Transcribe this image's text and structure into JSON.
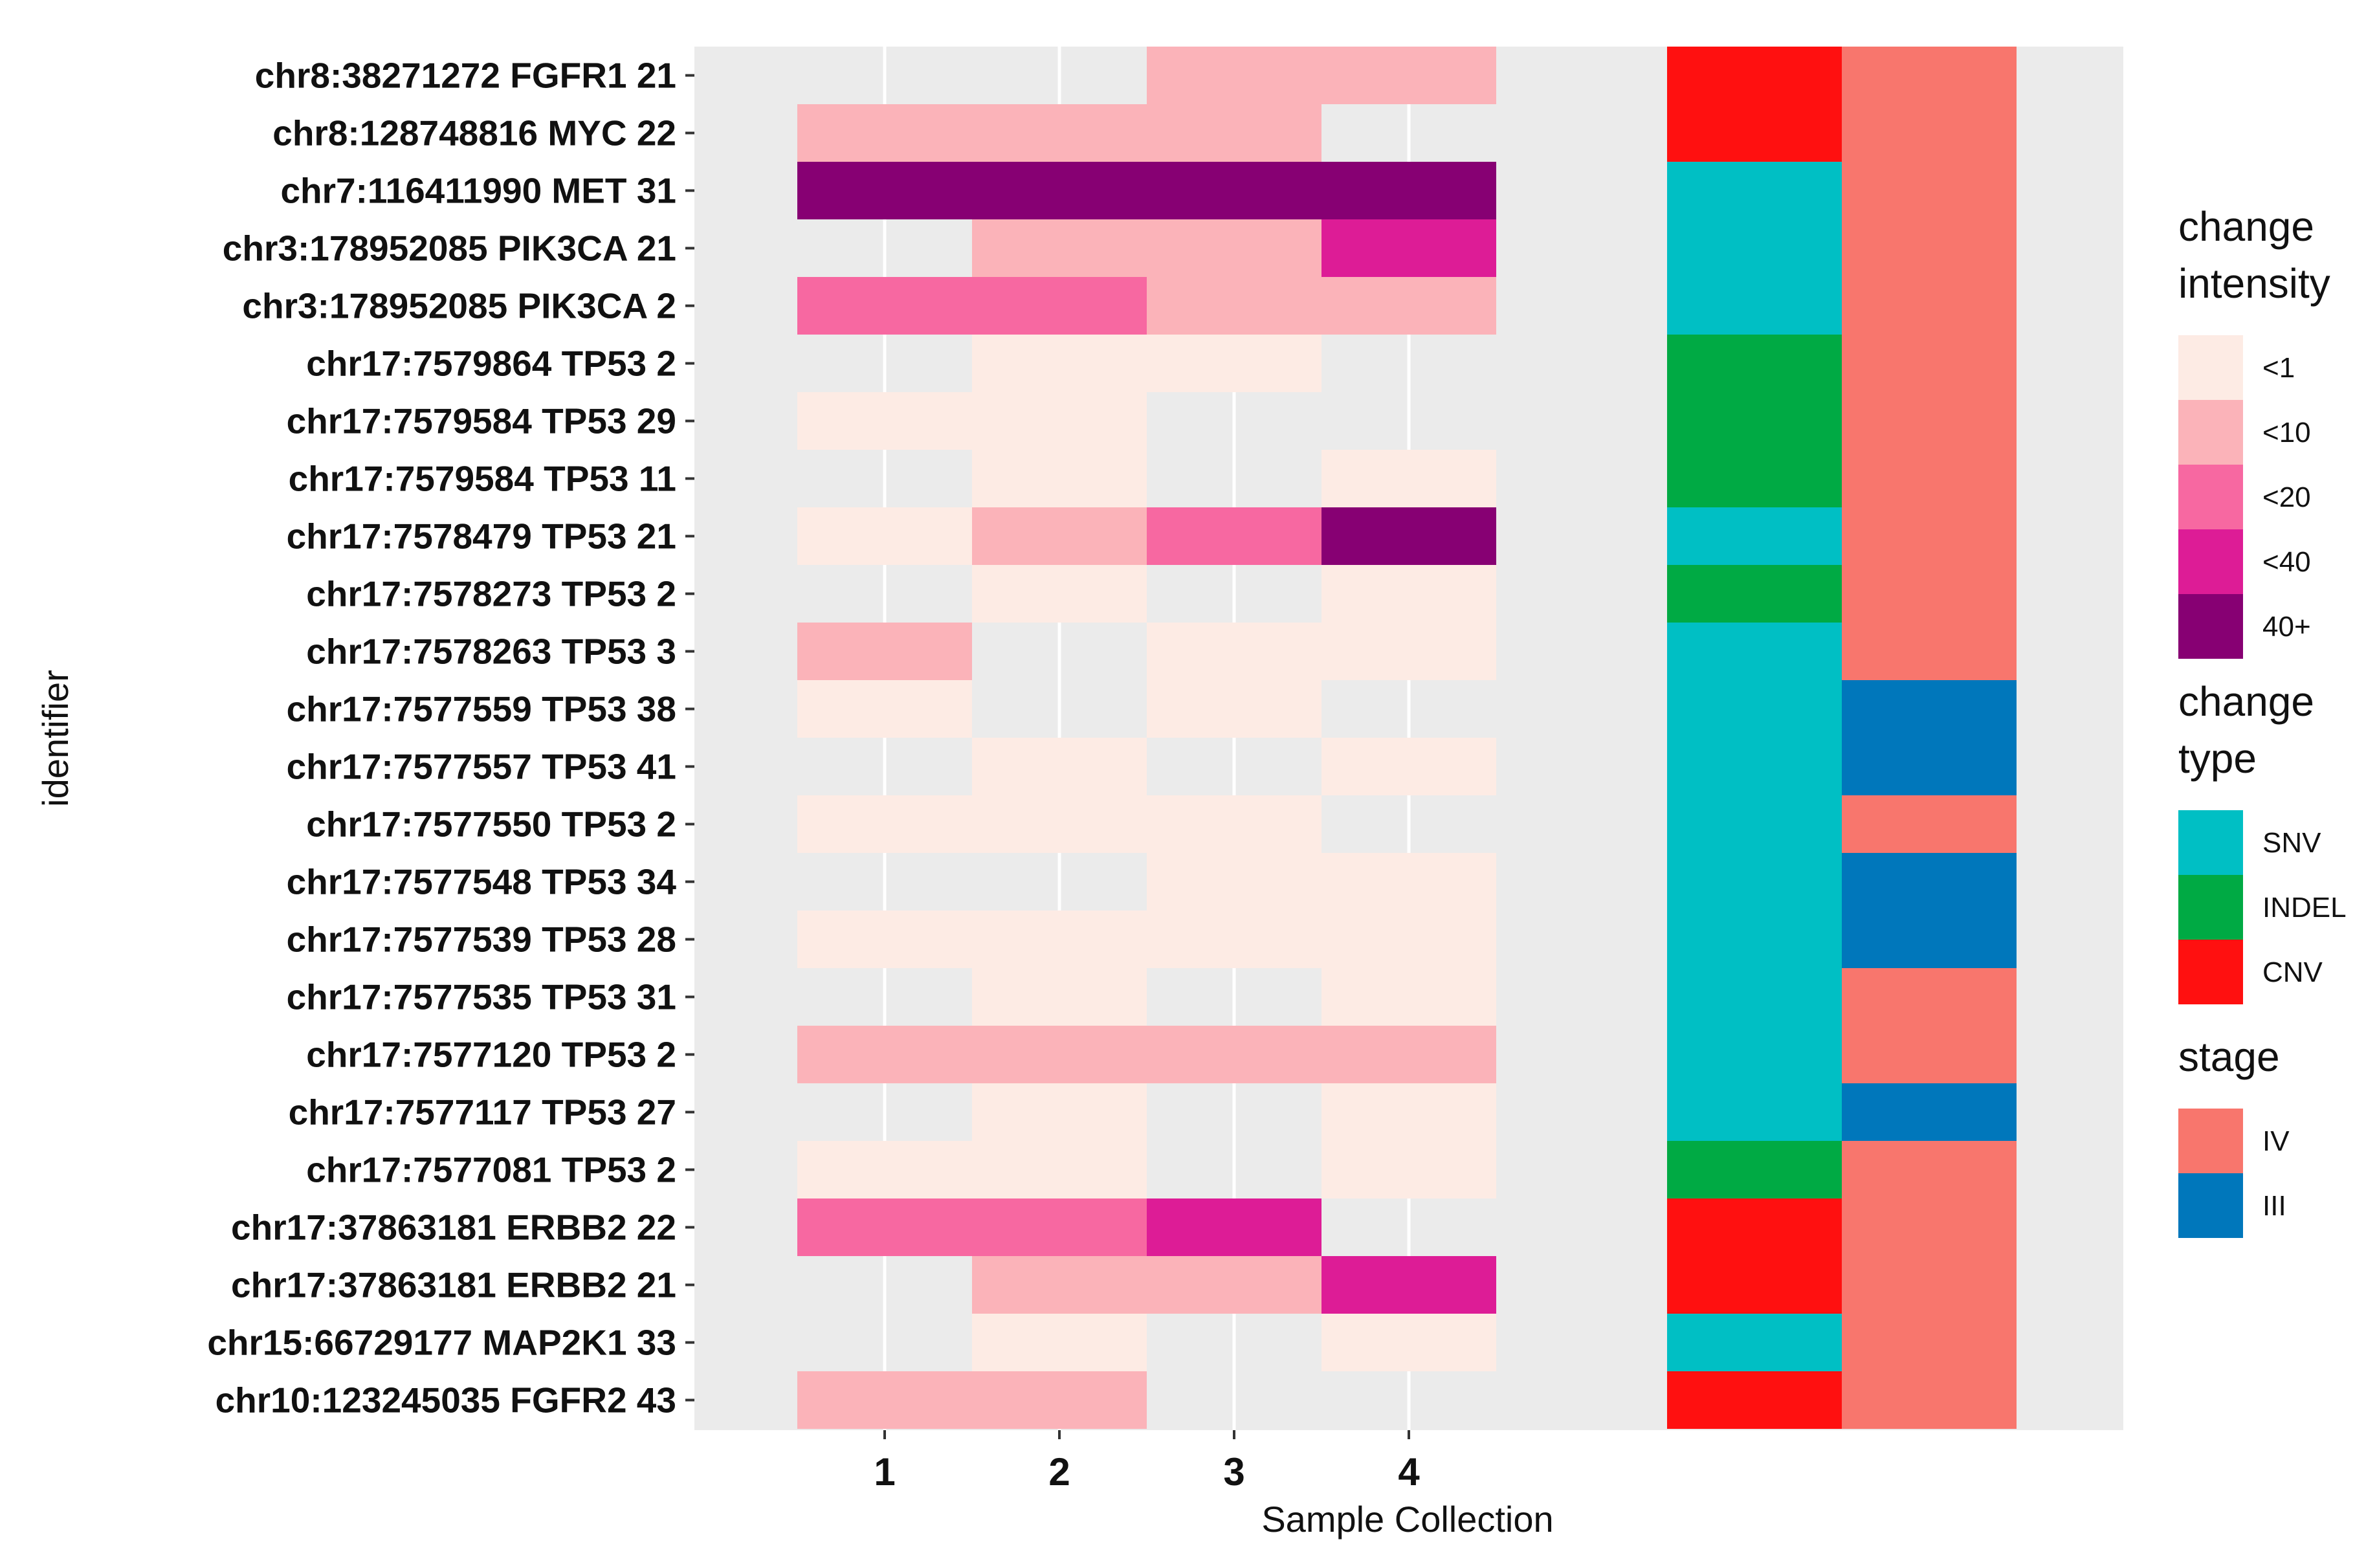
{
  "chart_data": {
    "type": "heatmap",
    "xlabel": "Sample Collection",
    "ylabel": "identifier",
    "x_categories": [
      "1",
      "2",
      "3",
      "4"
    ],
    "identifiers": [
      "chr8:38271272 FGFR1 21",
      "chr8:128748816 MYC 22",
      "chr7:116411990 MET 31",
      "chr3:178952085 PIK3CA 21",
      "chr3:178952085 PIK3CA 2",
      "chr17:7579864 TP53 2",
      "chr17:7579584 TP53 29",
      "chr17:7579584 TP53 11",
      "chr17:7578479 TP53 21",
      "chr17:7578273 TP53 2",
      "chr17:7578263 TP53 3",
      "chr17:7577559 TP53 38",
      "chr17:7577557 TP53 41",
      "chr17:7577550 TP53 2",
      "chr17:7577548 TP53 34",
      "chr17:7577539 TP53 28",
      "chr17:7577535 TP53 31",
      "chr17:7577120 TP53 2",
      "chr17:7577117 TP53 27",
      "chr17:7577081 TP53 2",
      "chr17:37863181 ERBB2 22",
      "chr17:37863181 ERBB2 21",
      "chr15:66729177 MAP2K1 33",
      "chr10:123245035 FGFR2 43"
    ],
    "intensity_matrix": [
      [
        null,
        null,
        "<10",
        "<10"
      ],
      [
        "<10",
        "<10",
        "<10",
        null
      ],
      [
        "40+",
        "40+",
        "40+",
        "40+"
      ],
      [
        null,
        "<10",
        "<10",
        "<40"
      ],
      [
        "<20",
        "<20",
        "<10",
        "<10"
      ],
      [
        null,
        "<1",
        "<1",
        null
      ],
      [
        "<1",
        "<1",
        null,
        null
      ],
      [
        null,
        "<1",
        null,
        "<1"
      ],
      [
        "<1",
        "<10",
        "<20",
        "40+"
      ],
      [
        null,
        "<1",
        null,
        "<1"
      ],
      [
        "<10",
        null,
        "<1",
        "<1"
      ],
      [
        "<1",
        null,
        "<1",
        null
      ],
      [
        null,
        "<1",
        null,
        "<1"
      ],
      [
        "<1",
        "<1",
        "<1",
        null
      ],
      [
        null,
        null,
        "<1",
        "<1"
      ],
      [
        "<1",
        "<1",
        "<1",
        "<1"
      ],
      [
        null,
        "<1",
        null,
        "<1"
      ],
      [
        "<10",
        "<10",
        "<10",
        "<10"
      ],
      [
        null,
        "<1",
        null,
        "<1"
      ],
      [
        "<1",
        "<1",
        null,
        "<1"
      ],
      [
        "<20",
        "<20",
        "<40",
        null
      ],
      [
        null,
        "<10",
        "<10",
        "<40"
      ],
      [
        null,
        "<1",
        null,
        "<1"
      ],
      [
        "<10",
        "<10",
        null,
        null
      ]
    ],
    "change_type": [
      "CNV",
      "CNV",
      "SNV",
      "SNV",
      "SNV",
      "INDEL",
      "INDEL",
      "INDEL",
      "SNV",
      "INDEL",
      "SNV",
      "SNV",
      "SNV",
      "SNV",
      "SNV",
      "SNV",
      "SNV",
      "SNV",
      "SNV",
      "INDEL",
      "CNV",
      "CNV",
      "SNV",
      "CNV"
    ],
    "stage": [
      "IV",
      "IV",
      "IV",
      "IV",
      "IV",
      "IV",
      "IV",
      "IV",
      "IV",
      "IV",
      "IV",
      "III",
      "III",
      "IV",
      "III",
      "III",
      "IV",
      "IV",
      "III",
      "IV",
      "IV",
      "IV",
      "IV",
      "IV"
    ]
  },
  "legends": {
    "intensity": {
      "title_lines": [
        "change",
        "intensity"
      ],
      "levels": [
        "<1",
        "<10",
        "<20",
        "<40",
        "40+"
      ],
      "colors": [
        "#fdebe4",
        "#fbb3b9",
        "#f768a1",
        "#dd1c96",
        "#870073"
      ]
    },
    "change_type": {
      "title_lines": [
        "change",
        "type"
      ],
      "levels": [
        "SNV",
        "INDEL",
        "CNV"
      ],
      "colors": [
        "#00bfc4",
        "#00aa44",
        "#ff1010"
      ]
    },
    "stage": {
      "title_lines": [
        "stage"
      ],
      "levels": [
        "IV",
        "III"
      ],
      "colors": [
        "#f8766d",
        "#0077bb"
      ]
    }
  },
  "colors": {
    "panel_background": "#ebebeb",
    "grid_line": "#ffffff"
  }
}
